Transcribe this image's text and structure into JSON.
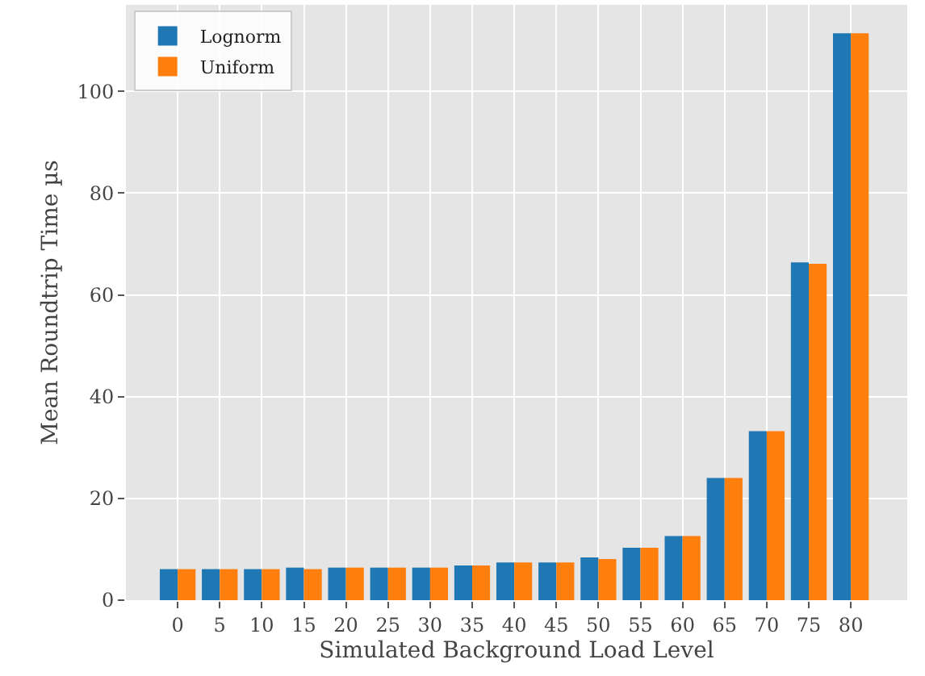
{
  "chart_data": {
    "type": "bar",
    "xlabel": "Simulated Background Load Level",
    "ylabel": "Mean Roundtrip Time µs",
    "categories": [
      "0",
      "5",
      "10",
      "15",
      "20",
      "25",
      "30",
      "35",
      "40",
      "45",
      "50",
      "55",
      "60",
      "65",
      "70",
      "75",
      "80"
    ],
    "series": [
      {
        "name": "Lognorm",
        "color": "#1f77b4",
        "values": [
          6.1,
          6.1,
          6.1,
          6.4,
          6.4,
          6.4,
          6.4,
          6.8,
          7.4,
          7.4,
          8.4,
          10.3,
          12.6,
          24.0,
          33.2,
          66.4,
          111.4
        ]
      },
      {
        "name": "Uniform",
        "color": "#ff7f0e",
        "values": [
          6.1,
          6.1,
          6.1,
          6.1,
          6.4,
          6.4,
          6.4,
          6.8,
          7.4,
          7.4,
          8.1,
          10.3,
          12.6,
          24.0,
          33.2,
          66.1,
          111.4
        ]
      }
    ],
    "ylim": [
      0,
      117
    ],
    "yticks": [
      0,
      20,
      40,
      60,
      80,
      100
    ],
    "grid": true,
    "legend": "top left"
  }
}
